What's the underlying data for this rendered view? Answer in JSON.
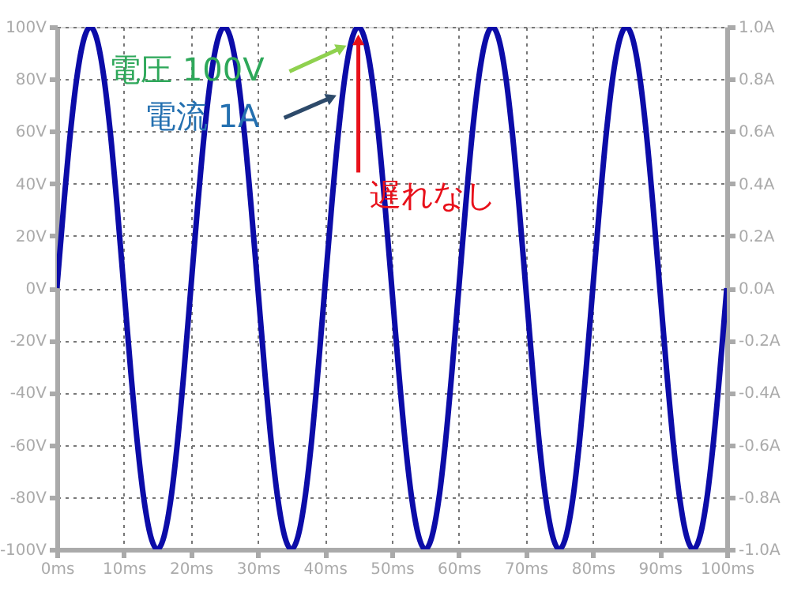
{
  "chart_data": {
    "type": "line",
    "x": [
      0,
      1,
      2,
      3,
      4,
      5,
      6,
      7,
      8,
      9,
      10,
      11,
      12,
      13,
      14,
      15,
      16,
      17,
      18,
      19,
      20,
      21,
      22,
      23,
      24,
      25,
      26,
      27,
      28,
      29,
      30,
      31,
      32,
      33,
      34,
      35,
      36,
      37,
      38,
      39,
      40,
      41,
      42,
      43,
      44,
      45,
      46,
      47,
      48,
      49,
      50,
      51,
      52,
      53,
      54,
      55,
      56,
      57,
      58,
      59,
      60,
      61,
      62,
      63,
      64,
      65,
      66,
      67,
      68,
      69,
      70,
      71,
      72,
      73,
      74,
      75,
      76,
      77,
      78,
      79,
      80,
      81,
      82,
      83,
      84,
      85,
      86,
      87,
      88,
      89,
      90,
      91,
      92,
      93,
      94,
      95,
      96,
      97,
      98,
      99,
      100
    ],
    "series": [
      {
        "color": "#0c0ca8",
        "values": [
          0,
          31,
          59,
          81,
          95,
          100,
          95,
          81,
          59,
          31,
          0,
          -31,
          -59,
          -81,
          -95,
          -100,
          -95,
          -81,
          -59,
          -31,
          0,
          31,
          59,
          81,
          95,
          100,
          95,
          81,
          59,
          31,
          0,
          -31,
          -59,
          -81,
          -95,
          -100,
          -95,
          -81,
          -59,
          -31,
          0,
          31,
          59,
          81,
          95,
          100,
          95,
          81,
          59,
          31,
          0,
          -31,
          -59,
          -81,
          -95,
          -100,
          -95,
          -81,
          -59,
          -31,
          0,
          31,
          59,
          81,
          95,
          100,
          95,
          81,
          59,
          31,
          0,
          -31,
          -59,
          -81,
          -95,
          -100,
          -95,
          -81,
          -59,
          -31,
          0,
          31,
          59,
          81,
          95,
          100,
          95,
          81,
          59,
          31,
          0,
          -31,
          -59,
          -81,
          -95,
          -100,
          -95,
          -81,
          -59,
          -31,
          0
        ]
      }
    ],
    "xlim": [
      0,
      100
    ],
    "xticks": [
      {
        "value": 0,
        "label": "0ms"
      },
      {
        "value": 10,
        "label": "10ms"
      },
      {
        "value": 20,
        "label": "20ms"
      },
      {
        "value": 30,
        "label": "30ms"
      },
      {
        "value": 40,
        "label": "40ms"
      },
      {
        "value": 50,
        "label": "50ms"
      },
      {
        "value": 60,
        "label": "60ms"
      },
      {
        "value": 70,
        "label": "70ms"
      },
      {
        "value": 80,
        "label": "80ms"
      },
      {
        "value": 90,
        "label": "90ms"
      },
      {
        "value": 100,
        "label": "100ms"
      }
    ],
    "ylim": [
      -100,
      100
    ],
    "yticks": [
      {
        "value": -100,
        "label": "-100V"
      },
      {
        "value": -80,
        "label": "-80V"
      },
      {
        "value": -60,
        "label": "-60V"
      },
      {
        "value": -40,
        "label": "-40V"
      },
      {
        "value": -20,
        "label": "-20V"
      },
      {
        "value": 0,
        "label": "0V"
      },
      {
        "value": 20,
        "label": "20V"
      },
      {
        "value": 40,
        "label": "40V"
      },
      {
        "value": 60,
        "label": "60V"
      },
      {
        "value": 80,
        "label": "80V"
      },
      {
        "value": 100,
        "label": "100V"
      }
    ],
    "y2lim": [
      -1.0,
      1.0
    ],
    "y2ticks": [
      {
        "value": -1.0,
        "label": "-1.0A"
      },
      {
        "value": -0.8,
        "label": "-0.8A"
      },
      {
        "value": -0.6,
        "label": "-0.6A"
      },
      {
        "value": -0.4,
        "label": "-0.4A"
      },
      {
        "value": -0.2,
        "label": "-0.2A"
      },
      {
        "value": 0,
        "label": "0.0A"
      },
      {
        "value": 0.2,
        "label": "0.2A"
      },
      {
        "value": 0.4,
        "label": "0.4A"
      },
      {
        "value": 0.6,
        "label": "0.6A"
      },
      {
        "value": 0.8,
        "label": "0.8A"
      },
      {
        "value": 1.0,
        "label": "1.0A"
      }
    ],
    "grid": true,
    "annotations": [
      {
        "text": "電圧 100V",
        "x": 42.5,
        "y": 92
      },
      {
        "text": "電流 1A",
        "x": 41,
        "y": 73
      },
      {
        "text": "遅れなし",
        "x": 45,
        "y": 95
      }
    ]
  }
}
